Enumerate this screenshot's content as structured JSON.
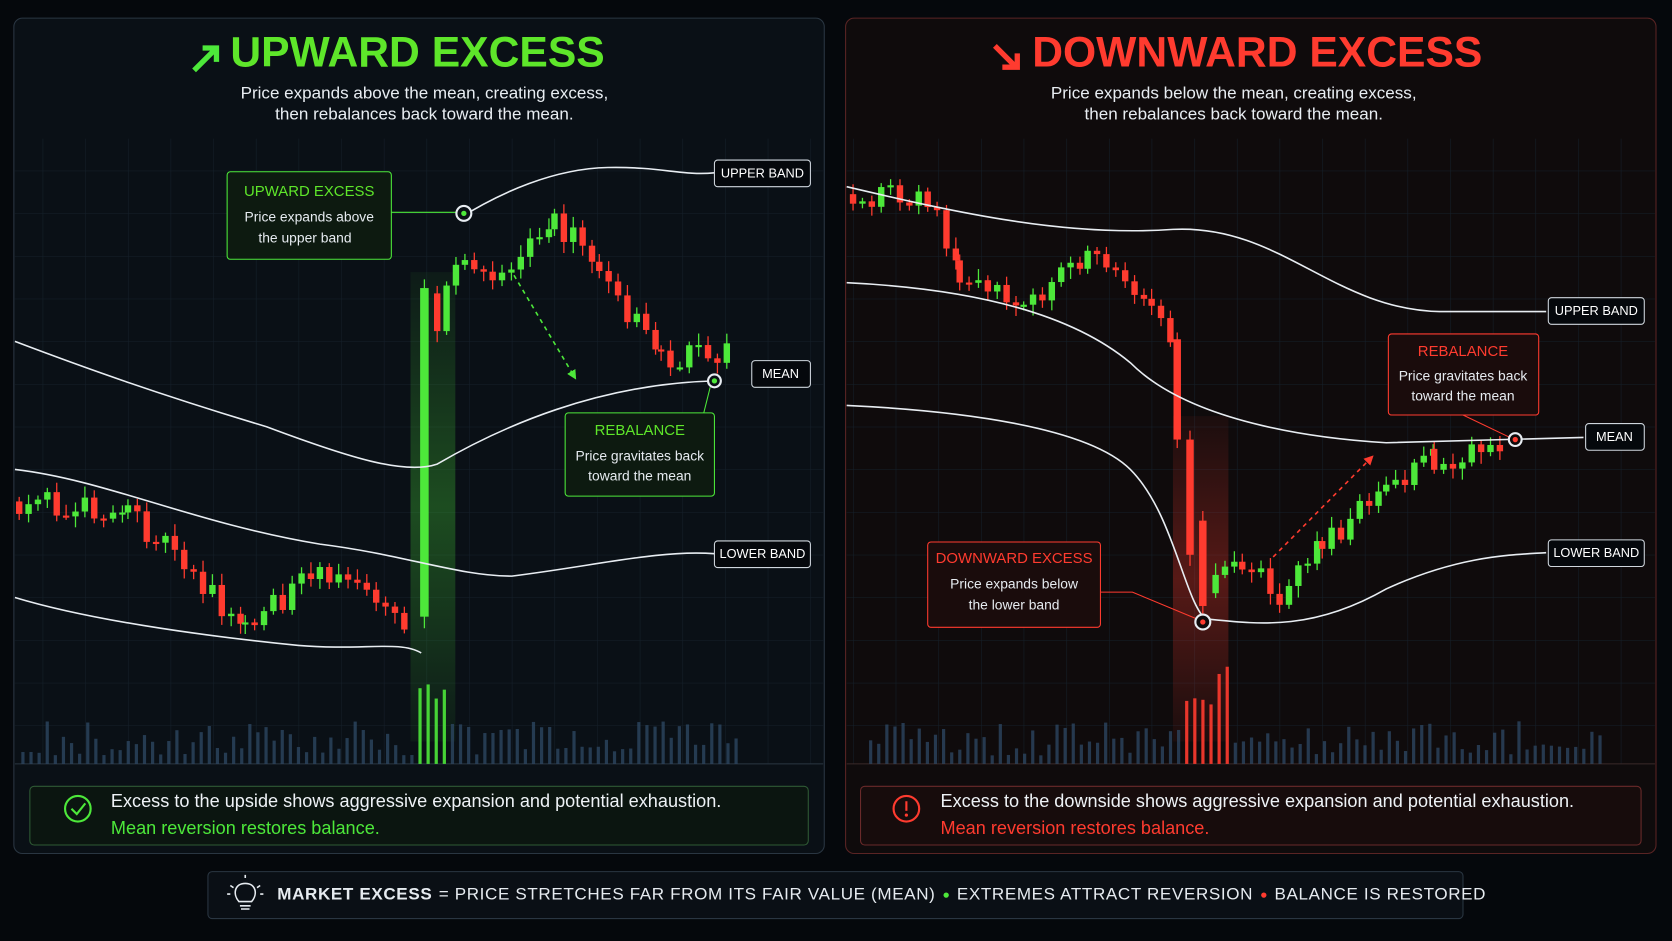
{
  "left_panel": {
    "title": "UPWARD EXCESS",
    "subtitle_lines": [
      "Price expands above the mean, creating excess,",
      "then rebalances back toward the mean."
    ],
    "callouts": [
      {
        "title": "UPWARD EXCESS",
        "lines": [
          "Price expands above",
          "the upper band"
        ]
      },
      {
        "title": "REBALANCE",
        "lines": [
          "Price gravitates back",
          "toward the mean"
        ]
      }
    ],
    "band_labels": [
      "UPPER BAND",
      "MEAN",
      "LOWER BAND"
    ],
    "footer_lines": [
      "Excess to the upside shows aggressive expansion and potential exhaustion.",
      "Mean reversion restores balance."
    ]
  },
  "right_panel": {
    "title": "DOWNWARD EXCESS",
    "subtitle_lines": [
      "Price expands below the mean, creating excess,",
      "then rebalances back toward the mean."
    ],
    "callouts": [
      {
        "title": "DOWNWARD EXCESS",
        "lines": [
          "Price expands below",
          "the lower band"
        ]
      },
      {
        "title": "REBALANCE",
        "lines": [
          "Price gravitates back",
          "toward the mean"
        ]
      }
    ],
    "band_labels": [
      "UPPER BAND",
      "MEAN",
      "LOWER BAND"
    ],
    "footer_lines": [
      "Excess to the downside shows aggressive expansion and potential exhaustion.",
      "Mean reversion restores balance."
    ]
  },
  "footer": {
    "label": "MARKET EXCESS",
    "text_parts": [
      "= PRICE STRETCHES FAR FROM ITS FAIR VALUE (MEAN)",
      "EXTREMES ATTRACT REVERSION",
      "BALANCE IS RESTORED"
    ]
  }
}
